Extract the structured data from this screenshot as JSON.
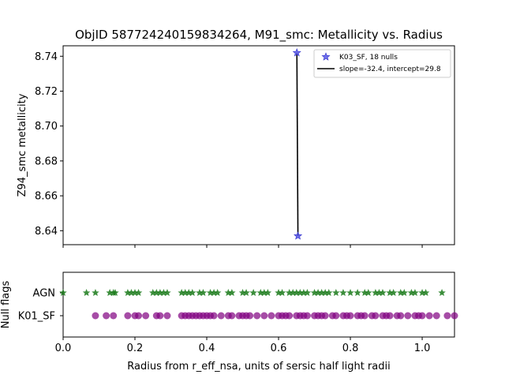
{
  "chart_data": [
    {
      "type": "scatter",
      "title": "ObjID 587724240159834264, M91_smc: Metallicity vs. Radius",
      "xlabel": "",
      "ylabel": "Z94_smc metallicity",
      "xlim": [
        0.0,
        1.09
      ],
      "ylim": [
        8.632,
        8.746
      ],
      "yticks": [
        8.64,
        8.66,
        8.68,
        8.7,
        8.72,
        8.74
      ],
      "ytick_labels": [
        "8.64",
        "8.66",
        "8.68",
        "8.70",
        "8.72",
        "8.74"
      ],
      "xticks": [
        0.0,
        0.2,
        0.4,
        0.6,
        0.8,
        1.0
      ],
      "legend_position": "upper right",
      "series": [
        {
          "name": "K03_SF, 18 nulls",
          "marker": "star",
          "color": "#5555e6",
          "points": [
            [
              0.651,
              8.742
            ],
            [
              0.654,
              8.637
            ]
          ]
        },
        {
          "name": "slope=-32.4, intercept=29.8",
          "kind": "line",
          "color": "#000000",
          "points": [
            [
              0.651,
              8.742
            ],
            [
              0.654,
              8.637
            ]
          ]
        }
      ]
    },
    {
      "type": "scatter",
      "xlabel": "Radius from r_eff_nsa, units of sersic half light radii",
      "ylabel": "Null flags",
      "xlim": [
        0.0,
        1.09
      ],
      "xticks": [
        0.0,
        0.2,
        0.4,
        0.6,
        0.8,
        1.0
      ],
      "xtick_labels": [
        "0.0",
        "0.2",
        "0.4",
        "0.6",
        "0.8",
        "1.0"
      ],
      "categories": [
        "AGN",
        "K01_SF"
      ],
      "series": [
        {
          "name": "AGN",
          "marker": "star",
          "color": "#1a7a1a",
          "x": [
            0.0,
            0.065,
            0.09,
            0.13,
            0.14,
            0.145,
            0.18,
            0.19,
            0.2,
            0.21,
            0.25,
            0.26,
            0.27,
            0.28,
            0.29,
            0.33,
            0.34,
            0.35,
            0.36,
            0.38,
            0.39,
            0.41,
            0.42,
            0.43,
            0.46,
            0.47,
            0.5,
            0.51,
            0.53,
            0.55,
            0.56,
            0.57,
            0.6,
            0.61,
            0.63,
            0.64,
            0.65,
            0.66,
            0.67,
            0.68,
            0.7,
            0.71,
            0.72,
            0.73,
            0.74,
            0.76,
            0.78,
            0.8,
            0.82,
            0.84,
            0.85,
            0.87,
            0.88,
            0.89,
            0.91,
            0.92,
            0.94,
            0.95,
            0.97,
            0.98,
            1.0,
            1.01,
            1.055
          ]
        },
        {
          "name": "K01_SF",
          "marker": "circle",
          "color": "#800080",
          "x": [
            0.09,
            0.12,
            0.14,
            0.18,
            0.2,
            0.21,
            0.23,
            0.26,
            0.27,
            0.29,
            0.33,
            0.34,
            0.35,
            0.36,
            0.37,
            0.38,
            0.39,
            0.4,
            0.41,
            0.42,
            0.44,
            0.46,
            0.47,
            0.49,
            0.5,
            0.51,
            0.52,
            0.54,
            0.56,
            0.58,
            0.6,
            0.61,
            0.62,
            0.63,
            0.65,
            0.66,
            0.67,
            0.68,
            0.7,
            0.71,
            0.72,
            0.73,
            0.75,
            0.76,
            0.78,
            0.79,
            0.8,
            0.82,
            0.83,
            0.84,
            0.86,
            0.87,
            0.89,
            0.9,
            0.91,
            0.93,
            0.94,
            0.96,
            0.98,
            0.99,
            1.0,
            1.02,
            1.04,
            1.07,
            1.09
          ]
        }
      ]
    }
  ]
}
